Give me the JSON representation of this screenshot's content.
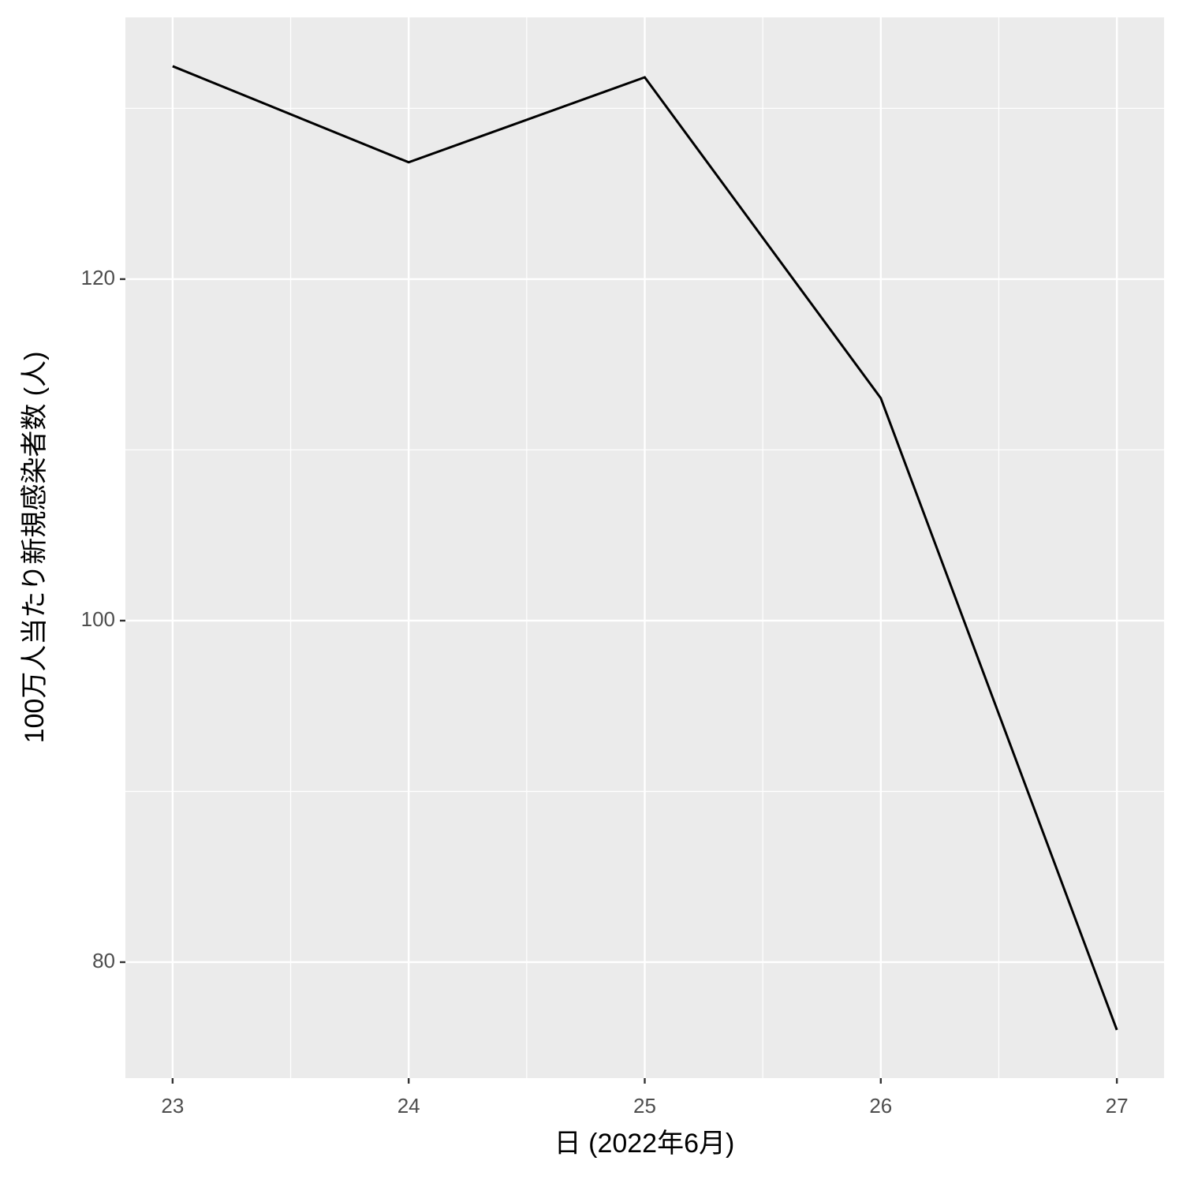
{
  "chart_data": {
    "type": "line",
    "x_label": "日 (2022年6月)",
    "y_label": "100万人当たり新規感染者数 (人)",
    "x": [
      23,
      24,
      25,
      26,
      27
    ],
    "series": [
      {
        "color": "#000000",
        "values": [
          132.47,
          126.84,
          131.82,
          113.03,
          76.03
        ]
      }
    ],
    "xlim": [
      22.8,
      27.2
    ],
    "xticks": [
      23,
      24,
      25,
      26,
      27
    ],
    "ylim": [
      73.21,
      135.33
    ],
    "yticks": [
      80,
      100,
      120
    ],
    "grid": true
  }
}
